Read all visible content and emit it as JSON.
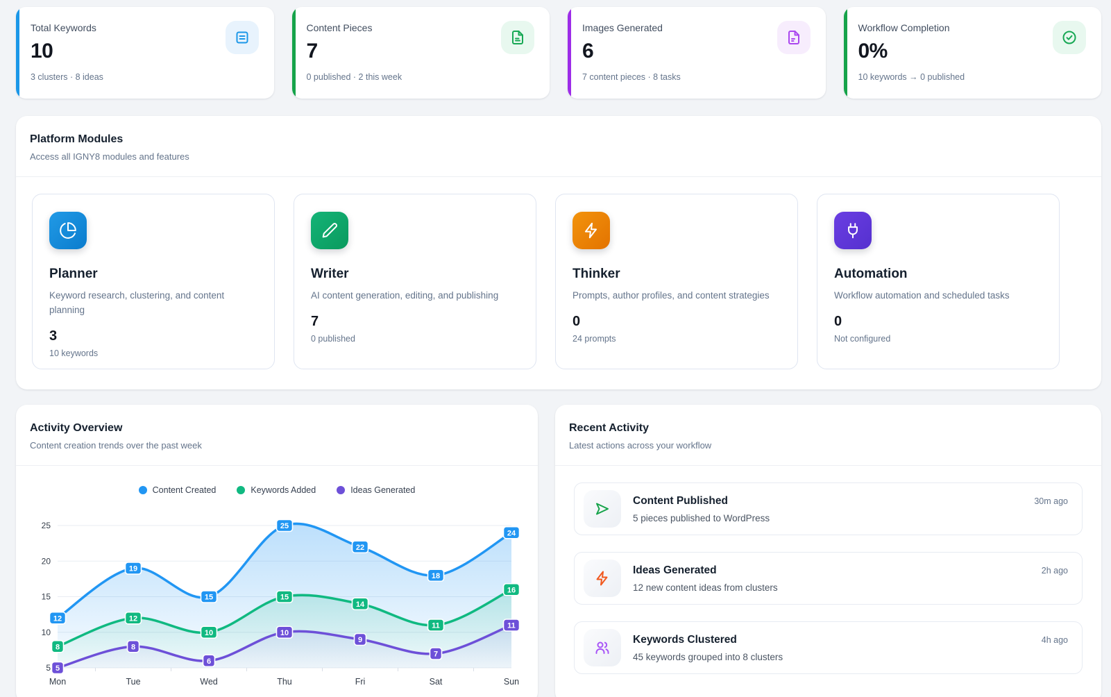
{
  "stats": [
    {
      "title": "Total Keywords",
      "value": "10",
      "sub": "3 clusters · 8 ideas",
      "accent": "#1b97e8",
      "icon": "notebook-icon",
      "icon_color": "#1b97e8",
      "icon_bg": "#e8f3fd"
    },
    {
      "title": "Content Pieces",
      "value": "7",
      "sub": "0 published · 2 this week",
      "accent": "#16a34a",
      "icon": "file-text-icon",
      "icon_color": "#17a854",
      "icon_bg": "#e8f8ef"
    },
    {
      "title": "Images Generated",
      "value": "6",
      "sub": "7 content pieces · 8 tasks",
      "accent": "#9d2ce8",
      "icon": "file-image-icon",
      "icon_color": "#ab47ef",
      "icon_bg": "#f7edfd"
    },
    {
      "title": "Workflow Completion",
      "value": "0%",
      "sub": "10 keywords → 0 published",
      "accent": "#16a34a",
      "icon": "check-circle-icon",
      "icon_color": "#17a854",
      "icon_bg": "#e8f8ef"
    }
  ],
  "modules_section": {
    "title": "Platform Modules",
    "subtitle": "Access all IGNY8 modules and features"
  },
  "modules": [
    {
      "name": "Planner",
      "description": "Keyword research, clustering, and content planning",
      "value": "3",
      "sub": "10 keywords",
      "icon": "pie-chart-icon",
      "gradient_from": "#219ae6",
      "gradient_to": "#0b7ccd"
    },
    {
      "name": "Writer",
      "description": "AI content generation, editing, and publishing",
      "value": "7",
      "sub": "0 published",
      "icon": "pencil-icon",
      "gradient_from": "#14b377",
      "gradient_to": "#0a9a5e"
    },
    {
      "name": "Thinker",
      "description": "Prompts, author profiles, and content strategies",
      "value": "0",
      "sub": "24 prompts",
      "icon": "zap-icon",
      "gradient_from": "#f2930d",
      "gradient_to": "#e37300"
    },
    {
      "name": "Automation",
      "description": "Workflow automation and scheduled tasks",
      "value": "0",
      "sub": "Not configured",
      "icon": "plug-icon",
      "gradient_from": "#6a3ee2",
      "gradient_to": "#5530cf"
    }
  ],
  "activity_overview": {
    "title": "Activity Overview",
    "subtitle": "Content creation trends over the past week"
  },
  "chart_data": {
    "type": "area",
    "x": [
      "Mon",
      "Tue",
      "Wed",
      "Thu",
      "Fri",
      "Sat",
      "Sun"
    ],
    "series": [
      {
        "name": "Content Created",
        "color": "#2196f3",
        "values": [
          12,
          19,
          15,
          25,
          22,
          18,
          24
        ]
      },
      {
        "name": "Keywords Added",
        "color": "#10b981",
        "values": [
          8,
          12,
          10,
          15,
          14,
          11,
          16
        ]
      },
      {
        "name": "Ideas Generated",
        "color": "#6d50d8",
        "values": [
          5,
          8,
          6,
          10,
          9,
          7,
          11
        ]
      }
    ],
    "ylim": [
      5,
      25
    ],
    "yticks": [
      5,
      10,
      15,
      20,
      25
    ],
    "grid": true,
    "legend_position": "top",
    "point_labels": true
  },
  "recent_activity": {
    "title": "Recent Activity",
    "subtitle": "Latest actions across your workflow",
    "items": [
      {
        "title": "Content Published",
        "description": "5 pieces published to WordPress",
        "time": "30m ago",
        "icon": "send-icon",
        "icon_color": "#16a34a"
      },
      {
        "title": "Ideas Generated",
        "description": "12 new content ideas from clusters",
        "time": "2h ago",
        "icon": "zap-icon",
        "icon_color": "#f1591f"
      },
      {
        "title": "Keywords Clustered",
        "description": "45 keywords grouped into 8 clusters",
        "time": "4h ago",
        "icon": "users-icon",
        "icon_color": "#a855f7"
      }
    ]
  }
}
